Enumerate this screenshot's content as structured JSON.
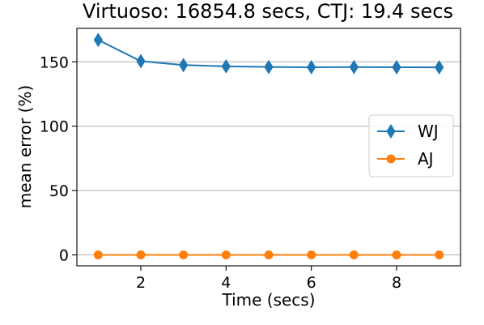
{
  "chart_data": {
    "type": "line",
    "title": "Virtuoso: 16854.8 secs, CTJ: 19.4 secs",
    "xlabel": "Time (secs)",
    "ylabel": "mean error (%)",
    "xlim": [
      0.5,
      9.5
    ],
    "ylim": [
      -8.5,
      176
    ],
    "x_ticks": [
      2,
      4,
      6,
      8
    ],
    "y_ticks": [
      0,
      50,
      100,
      150
    ],
    "grid": "y",
    "legend_position": "center-right",
    "x": [
      1,
      2,
      3,
      4,
      5,
      6,
      7,
      8,
      9
    ],
    "series": [
      {
        "name": "WJ",
        "color": "#1f77b4",
        "marker": "diamond",
        "values": [
          167,
          150.5,
          147.5,
          146.5,
          146,
          145.8,
          145.9,
          145.8,
          145.7
        ]
      },
      {
        "name": "AJ",
        "color": "#ff7f0e",
        "marker": "circle",
        "values": [
          0,
          0,
          0,
          0,
          0,
          0,
          0,
          0,
          0
        ]
      }
    ]
  }
}
